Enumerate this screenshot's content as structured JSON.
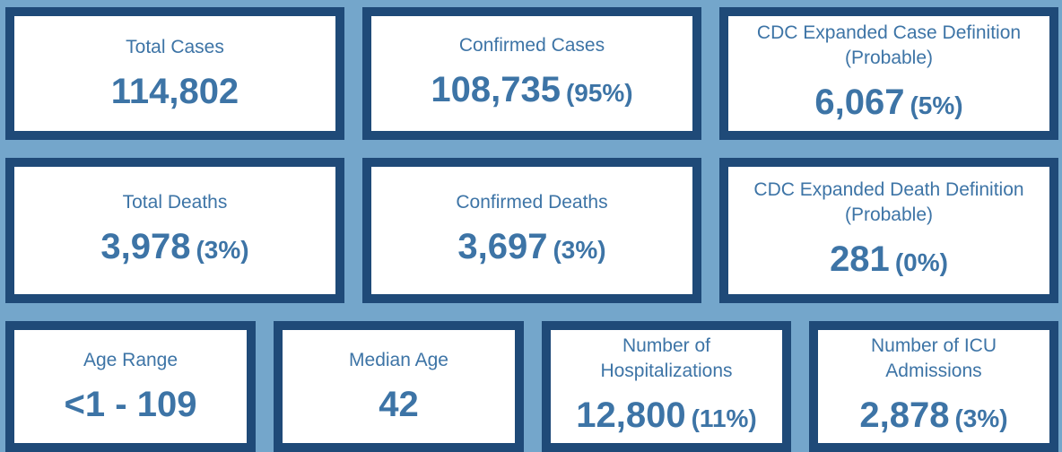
{
  "cards": [
    {
      "label": [
        "Total Cases"
      ],
      "value": "114,802"
    },
    {
      "label": [
        "Confirmed Cases"
      ],
      "value": "108,735",
      "pct": "(95%)"
    },
    {
      "label": [
        "CDC Expanded Case Definition",
        "(Probable)"
      ],
      "value": "6,067",
      "pct": "(5%)"
    },
    {
      "label": [
        "Total Deaths"
      ],
      "value": "3,978",
      "pct": "(3%)"
    },
    {
      "label": [
        "Confirmed Deaths"
      ],
      "value": "3,697",
      "pct": "(3%)"
    },
    {
      "label": [
        "CDC Expanded Death Definition",
        "(Probable)"
      ],
      "value": "281",
      "pct": "(0%)"
    },
    {
      "label": [
        "Age Range"
      ],
      "value": "<1 - 109"
    },
    {
      "label": [
        "Median Age"
      ],
      "value": "42"
    },
    {
      "label": [
        "Number of",
        "Hospitalizations"
      ],
      "value": "12,800",
      "pct": "(11%)"
    },
    {
      "label": [
        "Number of ICU",
        "Admissions"
      ],
      "value": "2,878",
      "pct": "(3%)"
    }
  ]
}
